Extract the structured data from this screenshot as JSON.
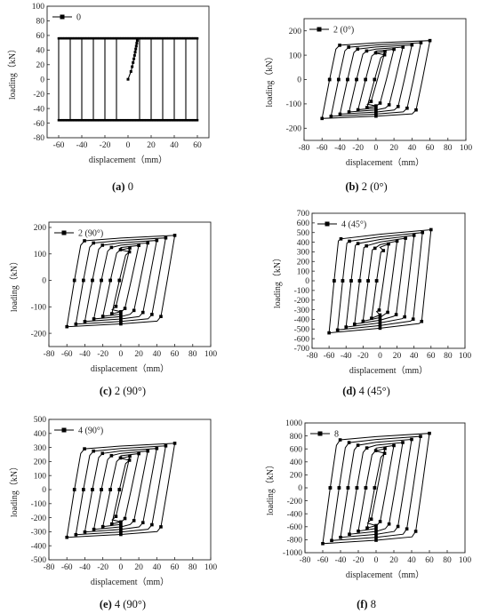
{
  "figure": {
    "panels": [
      {
        "caption_letter": "(a)",
        "caption_text": "0"
      },
      {
        "caption_letter": "(b)",
        "caption_text": "2 (0°)"
      },
      {
        "caption_letter": "(c)",
        "caption_text": "2 (90°)"
      },
      {
        "caption_letter": "(d)",
        "caption_text": "4 (45°)"
      },
      {
        "caption_letter": "(e)",
        "caption_text": "4 (90°)"
      },
      {
        "caption_letter": "(f)",
        "caption_text": "8"
      }
    ]
  },
  "chart_data": [
    {
      "type": "line",
      "legend": "0",
      "xlabel": "displacement（mm）",
      "ylabel": "loading（kN）",
      "xlim": [
        -70,
        70
      ],
      "ylim": [
        -80,
        100
      ],
      "xticks": [
        -60,
        -40,
        -20,
        0,
        20,
        40,
        60
      ],
      "yticks": [
        -80,
        -60,
        -40,
        -20,
        0,
        20,
        40,
        60,
        80,
        100
      ],
      "amplitudes": [
        5,
        10,
        20,
        30,
        40,
        50,
        60
      ],
      "peak_pos": 56,
      "peak_neg": -56,
      "elastic_disp": 5,
      "hardening": 0,
      "marker_every": 1,
      "skeleton": true,
      "grid": false,
      "legend_pos": "top-left"
    },
    {
      "type": "line",
      "legend": "2 (0°)",
      "xlabel": "displacement（mm）",
      "ylabel": "loading（kN）",
      "xlim": [
        -80,
        100
      ],
      "ylim": [
        -250,
        250
      ],
      "xticks": [
        -80,
        -60,
        -40,
        -20,
        0,
        20,
        40,
        60,
        80,
        100
      ],
      "yticks": [
        -200,
        -100,
        0,
        100,
        200
      ],
      "amplitudes": [
        10,
        20,
        30,
        40,
        50,
        60
      ],
      "peak_pos": 160,
      "peak_neg": -160,
      "elastic_disp": 14,
      "hardening": 0.12,
      "marker_every": 2,
      "skeleton": false,
      "grid": false,
      "legend_pos": "top-left"
    },
    {
      "type": "line",
      "legend": "2 (90°)",
      "xlabel": "displacement（mm）",
      "ylabel": "loading（kN）",
      "xlim": [
        -80,
        100
      ],
      "ylim": [
        -250,
        220
      ],
      "xticks": [
        -80,
        -60,
        -40,
        -20,
        0,
        20,
        40,
        60,
        80,
        100
      ],
      "yticks": [
        -200,
        -100,
        0,
        100,
        200
      ],
      "amplitudes": [
        10,
        20,
        30,
        40,
        50,
        60
      ],
      "peak_pos": 170,
      "peak_neg": -175,
      "elastic_disp": 14,
      "hardening": 0.12,
      "marker_every": 2,
      "skeleton": false,
      "grid": false,
      "legend_pos": "top-left"
    },
    {
      "type": "line",
      "legend": "4 (45°)",
      "xlabel": "displacement（mm）",
      "ylabel": "loading（kN）",
      "xlim": [
        -80,
        100
      ],
      "ylim": [
        -700,
        700
      ],
      "xticks": [
        -80,
        -60,
        -40,
        -20,
        0,
        20,
        40,
        60,
        80,
        100
      ],
      "yticks": [
        -700,
        -600,
        -500,
        -400,
        -300,
        -200,
        -100,
        0,
        100,
        200,
        300,
        400,
        500,
        600,
        700
      ],
      "amplitudes": [
        10,
        20,
        30,
        40,
        50,
        60
      ],
      "peak_pos": 530,
      "peak_neg": -540,
      "elastic_disp": 10,
      "hardening": 0.18,
      "marker_every": 2,
      "skeleton": false,
      "grid": false,
      "legend_pos": "top-left"
    },
    {
      "type": "line",
      "legend": "4 (90°)",
      "xlabel": "displacement（mm）",
      "ylabel": "loading（kN）",
      "xlim": [
        -80,
        100
      ],
      "ylim": [
        -500,
        500
      ],
      "xticks": [
        -80,
        -60,
        -40,
        -20,
        0,
        20,
        40,
        60,
        80,
        100
      ],
      "yticks": [
        -500,
        -400,
        -300,
        -200,
        -100,
        0,
        100,
        200,
        300,
        400,
        500
      ],
      "amplitudes": [
        10,
        20,
        30,
        40,
        50,
        60
      ],
      "peak_pos": 330,
      "peak_neg": -340,
      "elastic_disp": 14,
      "hardening": 0.12,
      "marker_every": 2,
      "skeleton": false,
      "grid": false,
      "legend_pos": "top-left"
    },
    {
      "type": "line",
      "legend": "8",
      "xlabel": "displacement（mm）",
      "ylabel": "loading（kN）",
      "xlim": [
        -80,
        100
      ],
      "ylim": [
        -1000,
        1000
      ],
      "xticks": [
        -80,
        -60,
        -40,
        -20,
        0,
        20,
        40,
        60,
        80,
        100
      ],
      "yticks": [
        -1000,
        -800,
        -600,
        -400,
        -200,
        0,
        200,
        400,
        600,
        800,
        1000
      ],
      "amplitudes": [
        10,
        20,
        30,
        40,
        50,
        60
      ],
      "peak_pos": 840,
      "peak_neg": -860,
      "elastic_disp": 14,
      "hardening": 0.12,
      "marker_every": 2,
      "skeleton": false,
      "grid": false,
      "legend_pos": "top-left"
    }
  ]
}
